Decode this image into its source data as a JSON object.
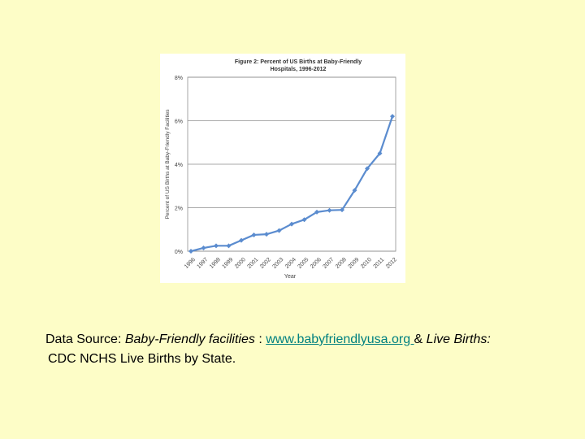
{
  "chart_data": {
    "type": "line",
    "title": "Figure 2: Percent of US Births at Baby-Friendly",
    "subtitle": "Hospitals, 1996-2012",
    "xlabel": "Year",
    "ylabel": "Percent of US Births at Baby-Friendly Facilities",
    "categories": [
      "1996",
      "1997",
      "1998",
      "1999",
      "2000",
      "2001",
      "2002",
      "2003",
      "2004",
      "2005",
      "2006",
      "2007",
      "2008",
      "2009",
      "2010",
      "2011",
      "2012"
    ],
    "values": [
      0.0,
      0.15,
      0.25,
      0.25,
      0.5,
      0.75,
      0.78,
      0.95,
      1.25,
      1.45,
      1.8,
      1.88,
      1.9,
      2.8,
      3.8,
      4.5,
      6.2
    ],
    "y_ticks": [
      "0%",
      "2%",
      "4%",
      "6%",
      "8%"
    ],
    "y_tick_values": [
      0,
      2,
      4,
      6,
      8
    ],
    "ylim": [
      0,
      8
    ],
    "grid": "horizontal",
    "legend": "none",
    "line_color": "#5b8ccf"
  },
  "caption": {
    "source_label": "Data Source: ",
    "facilities_label": "Baby-Friendly facilities",
    "separator": " : ",
    "link_text": "www.babyfriendlyusa.org ",
    "ampersand": " & ",
    "births_label": "Live Births",
    "colon": ":",
    "line2": "CDC NCHS Live Births by State."
  }
}
